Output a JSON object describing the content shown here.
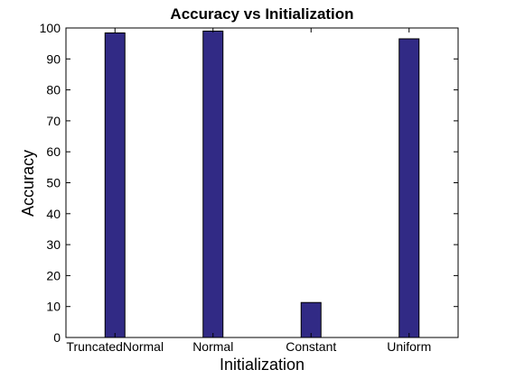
{
  "chart_data": {
    "type": "bar",
    "title": "Accuracy vs Initialization",
    "xlabel": "Initialization",
    "ylabel": "Accuracy",
    "categories": [
      "TruncatedNormal",
      "Normal",
      "Constant",
      "Uniform"
    ],
    "values": [
      98.4,
      99.0,
      11.3,
      96.5
    ],
    "ylim": [
      0,
      100
    ],
    "yticks": [
      0,
      10,
      20,
      30,
      40,
      50,
      60,
      70,
      80,
      90,
      100
    ],
    "grid": false,
    "bar_color": "#312a85"
  }
}
